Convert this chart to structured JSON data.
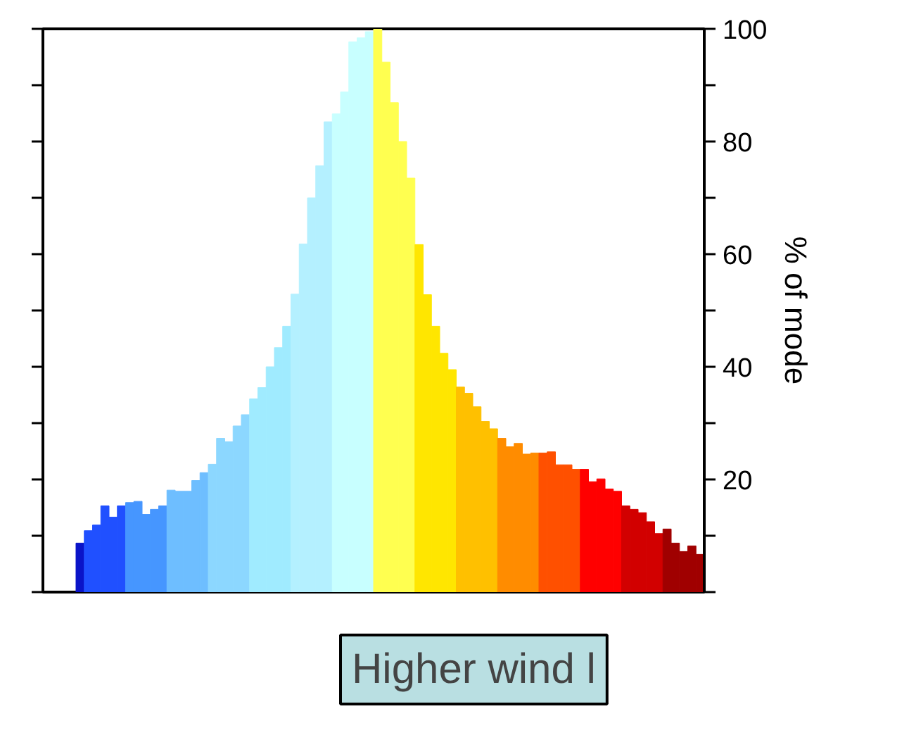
{
  "chart_data": {
    "type": "bar",
    "ylabel": "% of mode",
    "categories": [
      null,
      null,
      null,
      null,
      null,
      null,
      null,
      null,
      null,
      null,
      null,
      null,
      null,
      null,
      null,
      null,
      null,
      null,
      null,
      null,
      null,
      null,
      null,
      null,
      null,
      null,
      null,
      null,
      null,
      null,
      null,
      null,
      null,
      null,
      null,
      null,
      null,
      null,
      null,
      null,
      null,
      null,
      null,
      null,
      null,
      null,
      null,
      null,
      null,
      null,
      null,
      null,
      null,
      null,
      null,
      null,
      null,
      null,
      null,
      null,
      null,
      null,
      null,
      null,
      null,
      null,
      null,
      null,
      null,
      null,
      null,
      null,
      null,
      null,
      null,
      null
    ],
    "values": [
      8.7,
      10.9,
      11.9,
      15.3,
      13.3,
      15.3,
      15.9,
      16.1,
      13.8,
      14.7,
      15.3,
      18.1,
      17.9,
      17.9,
      19.8,
      21.2,
      22.7,
      27.3,
      26.7,
      29.5,
      31.5,
      34.3,
      36.3,
      40.0,
      43.4,
      47.2,
      52.9,
      61.8,
      70.0,
      75.7,
      83.5,
      84.9,
      88.8,
      97.7,
      98.4,
      99.5,
      100,
      94.1,
      86.9,
      80.0,
      73.5,
      61.7,
      52.8,
      47.2,
      42.4,
      39.5,
      36.4,
      35.3,
      32.9,
      30.3,
      29.0,
      27.3,
      25.8,
      26.4,
      24.5,
      24.7,
      24.7,
      24.9,
      22.6,
      22.6,
      21.8,
      21.8,
      19.6,
      20.1,
      18.3,
      17.9,
      15.3,
      14.7,
      14.1,
      12.5,
      10.4,
      11.2,
      8.7,
      7.2,
      8.2,
      6.7
    ],
    "colors": [
      "#0a14c8",
      "#2050ff",
      "#2050ff",
      "#2050ff",
      "#2050ff",
      "#2050ff",
      "#4696ff",
      "#4696ff",
      "#4696ff",
      "#4696ff",
      "#4696ff",
      "#6ebeff",
      "#6ebeff",
      "#6ebeff",
      "#6ebeff",
      "#6ebeff",
      "#8cd7ff",
      "#8cd7ff",
      "#8cd7ff",
      "#8cd7ff",
      "#8cd7ff",
      "#a0ebff",
      "#a0ebff",
      "#a0ebff",
      "#a0ebff",
      "#a0ebff",
      "#b4f0ff",
      "#b4f0ff",
      "#b4f0ff",
      "#b4f0ff",
      "#b4f0ff",
      "#c8ffff",
      "#c8ffff",
      "#c8ffff",
      "#c8ffff",
      "#c8ffff",
      "#ffff50",
      "#ffff50",
      "#ffff50",
      "#ffff50",
      "#ffff50",
      "#ffe600",
      "#ffe600",
      "#ffe600",
      "#ffe600",
      "#ffe600",
      "#ffc000",
      "#ffc000",
      "#ffc000",
      "#ffc000",
      "#ffc000",
      "#ff8c00",
      "#ff8c00",
      "#ff8c00",
      "#ff8c00",
      "#ff8c00",
      "#ff5000",
      "#ff5000",
      "#ff5000",
      "#ff5000",
      "#ff5000",
      "#ff0000",
      "#ff0000",
      "#ff0000",
      "#ff0000",
      "#ff0000",
      "#d20000",
      "#d20000",
      "#d20000",
      "#d20000",
      "#d20000",
      "#a00000",
      "#a00000",
      "#a00000",
      "#a00000",
      "#a00000"
    ],
    "ylim": [
      0,
      100
    ],
    "yticks": [
      {
        "value": 0,
        "label": null
      },
      {
        "value": 10,
        "label": null
      },
      20,
      {
        "value": 30,
        "label": null
      },
      40,
      {
        "value": 50,
        "label": null
      },
      60,
      {
        "value": 70,
        "label": null
      },
      80,
      {
        "value": 90,
        "label": null
      },
      100
    ],
    "tick_labels": "y",
    "grid": false,
    "annotations": [
      "Higher wind l"
    ]
  }
}
